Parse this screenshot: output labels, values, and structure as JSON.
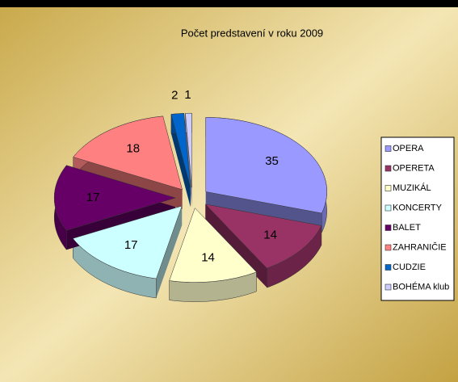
{
  "chart_data": {
    "type": "pie3d",
    "title": "Počet predstavení v roku 2009",
    "categories": [
      "OPERA",
      "OPERETA",
      "MUZIKÁL",
      "KONCERTY",
      "BALET",
      "ZAHRANIČIE",
      "CUDZIE",
      "BOHÉMA klub"
    ],
    "values": [
      35,
      14,
      14,
      17,
      17,
      18,
      2,
      1
    ],
    "colors": [
      "#9999ff",
      "#993366",
      "#ffffcc",
      "#ccffff",
      "#660066",
      "#ff8080",
      "#0066cc",
      "#ccccff"
    ],
    "legend": "right"
  }
}
